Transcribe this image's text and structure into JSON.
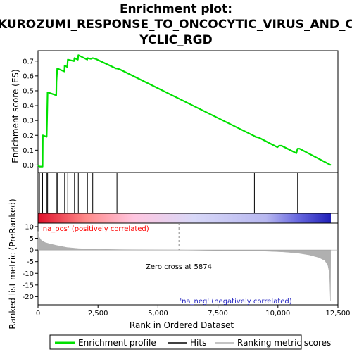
{
  "chart_data": {
    "type": "line",
    "title_lines": [
      "Enrichment plot:",
      "KUROZUMI_RESPONSE_TO_ONCOCYTIC_VIRUS_AND_C",
      "YCLIC_RGD"
    ],
    "top_panel": {
      "ylabel": "Enrichment score (ES)",
      "ylim": [
        -0.05,
        0.77
      ],
      "yticks": [
        "0.0",
        "0.1",
        "0.2",
        "0.3",
        "0.4",
        "0.5",
        "0.6",
        "0.7"
      ],
      "ytick_values": [
        0,
        0.1,
        0.2,
        0.3,
        0.4,
        0.5,
        0.6,
        0.7
      ],
      "series": [
        {
          "name": "Enrichment profile",
          "color": "#00e000",
          "x": [
            0,
            60,
            190,
            200,
            360,
            380,
            400,
            760,
            770,
            800,
            1100,
            1110,
            1220,
            1240,
            1500,
            1520,
            1660,
            1680,
            2050,
            2060,
            2200,
            2280,
            2400,
            3250,
            3290,
            3400,
            9020,
            9060,
            9200,
            9980,
            10050,
            10150,
            10770,
            10820,
            10900,
            12200
          ],
          "y": [
            0,
            -0.01,
            -0.01,
            0.2,
            0.19,
            0.34,
            0.49,
            0.47,
            0.56,
            0.65,
            0.63,
            0.67,
            0.66,
            0.71,
            0.7,
            0.72,
            0.71,
            0.74,
            0.71,
            0.72,
            0.715,
            0.72,
            0.715,
            0.65,
            0.65,
            0.645,
            0.195,
            0.19,
            0.185,
            0.12,
            0.13,
            0.13,
            0.08,
            0.11,
            0.11,
            0.0
          ]
        }
      ],
      "hits": [
        60,
        190,
        360,
        400,
        760,
        800,
        1110,
        1240,
        1520,
        1680,
        2060,
        2280,
        3290,
        9020,
        10050,
        10820
      ]
    },
    "bottom_panel": {
      "xlabel": "Rank in Ordered Dataset",
      "ylabel": "Ranked list metric (PreRanked)",
      "xlim": [
        0,
        12500
      ],
      "ylim": [
        -23.5,
        11.5
      ],
      "xticks": [
        "0",
        "2,500",
        "5,000",
        "7,500",
        "10,000",
        "12,500"
      ],
      "xtick_values": [
        0,
        2500,
        5000,
        7500,
        10000,
        12500
      ],
      "yticks": [
        "10",
        "5",
        "0",
        "-5",
        "-10",
        "-15",
        "-20"
      ],
      "ytick_values": [
        10,
        5,
        0,
        -5,
        -10,
        -15,
        -20
      ],
      "series": [
        {
          "name": "Ranking metric scores",
          "color": "#b0b0b0",
          "x": [
            0,
            50,
            150,
            300,
            500,
            800,
            1200,
            1700,
            2500,
            3500,
            4500,
            5874,
            7000,
            8500,
            9500,
            10200,
            10800,
            11300,
            11700,
            11950,
            12080,
            12150,
            12190,
            12200
          ],
          "y": [
            8,
            5.5,
            4,
            3.2,
            2.6,
            1.9,
            1.1,
            0.6,
            0.3,
            0.15,
            0.05,
            0,
            -0.15,
            -0.3,
            -0.5,
            -0.8,
            -1.3,
            -2.1,
            -3.2,
            -4.5,
            -6.5,
            -10,
            -22,
            0
          ]
        }
      ],
      "annotations": [
        "'na_pos' (positively correlated)",
        "Zero cross at 5874",
        "'na_neg' (negatively correlated)"
      ],
      "zero_cross": 5874
    },
    "color_bar": {
      "stops": [
        "#e0102a",
        "#ff8a8a",
        "#ffc6e0",
        "#d8d8f8",
        "#b8b8f0",
        "#6a6ae0",
        "#2020b8"
      ],
      "stop_ranks": [
        0,
        2000,
        4000,
        6500,
        9500,
        10800,
        12200
      ]
    },
    "legend": [
      "Enrichment profile",
      "Hits",
      "Ranking metric scores"
    ]
  }
}
